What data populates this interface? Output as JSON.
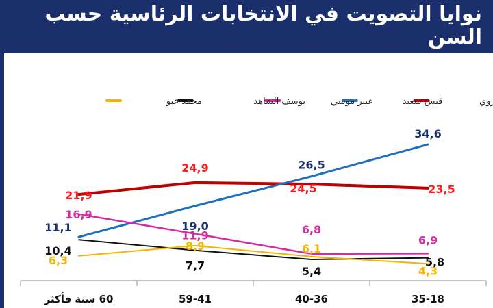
{
  "title": "نوايا التصويت في الانتخابات الرئاسية حسب السن",
  "chart_data": {
    "type": "line",
    "categories": [
      "60 سنة فأكثر",
      "59-41",
      "40-36",
      "35-18"
    ],
    "ylim": [
      0,
      40
    ],
    "legend_position": "top",
    "grid": false,
    "series": [
      {
        "name": "نبيل قروي",
        "color": "#c00000",
        "label_color": "#ff1a1a",
        "values": [
          21.9,
          24.9,
          24.5,
          23.5
        ],
        "labels": [
          "21,9",
          "24,9",
          "24,5",
          "23,5"
        ]
      },
      {
        "name": "قيس سعيد",
        "color": "#1f6fbf",
        "label_color": "#1a2f6b",
        "values": [
          11.1,
          19.0,
          26.5,
          34.6
        ],
        "labels": [
          "11,1",
          "19,0",
          "26,5",
          "34,6"
        ]
      },
      {
        "name": "عبير موسي",
        "color": "#d52ba0",
        "label_color": "#d52ba0",
        "values": [
          16.9,
          11.9,
          6.8,
          6.9
        ],
        "labels": [
          "16,9",
          "11,9",
          "6,8",
          "6,9"
        ]
      },
      {
        "name": "يوسف الشاهد",
        "color": "#111111",
        "label_color": "#111111",
        "values": [
          10.4,
          7.7,
          5.4,
          5.8
        ],
        "labels": [
          "10,4",
          "7,7",
          "5,4",
          "5,8"
        ]
      },
      {
        "name": "محمد عبو",
        "color": "#f5b400",
        "label_color": "#f5b400",
        "values": [
          6.3,
          8.9,
          6.1,
          4.3
        ],
        "labels": [
          "6,3",
          "8,9",
          "6,1",
          "4,3"
        ]
      }
    ]
  }
}
